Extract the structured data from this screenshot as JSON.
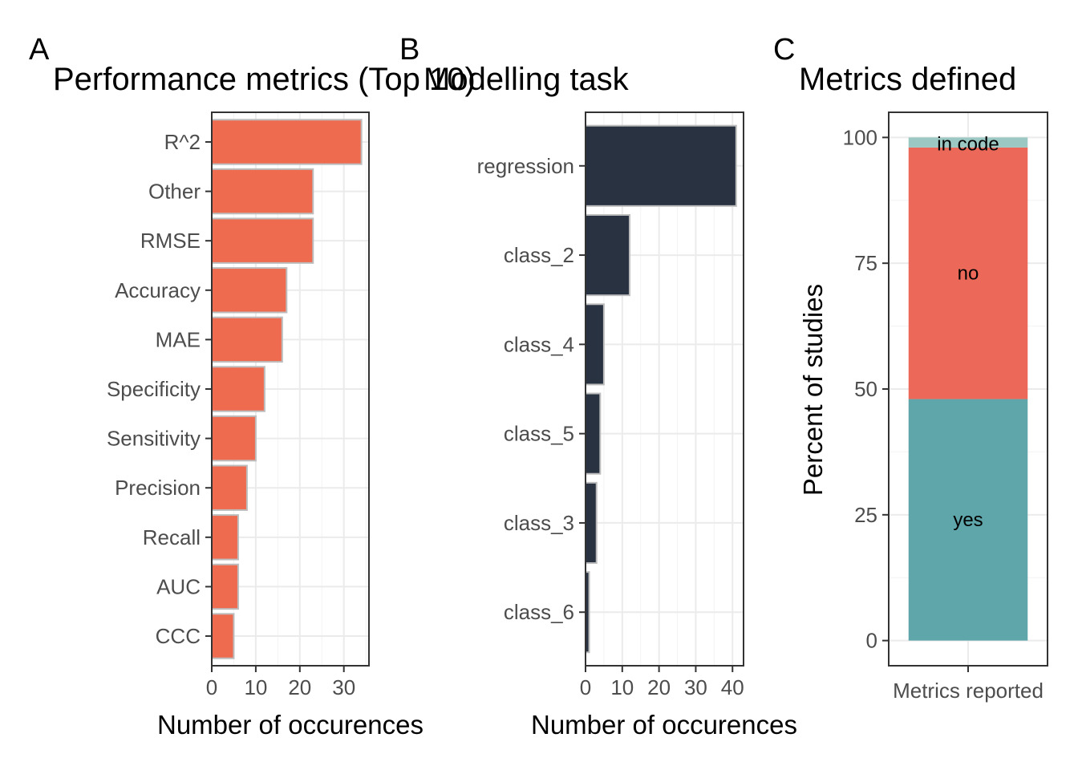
{
  "chart_data": [
    {
      "panel": "A",
      "type": "bar",
      "orientation": "horizontal",
      "title": "Performance metrics (Top 10)",
      "xlabel": "Number of occurences",
      "ylabel": "",
      "categories": [
        "R^2",
        "Other",
        "RMSE",
        "Accuracy",
        "MAE",
        "Specificity",
        "Sensitivity",
        "Precision",
        "Recall",
        "AUC",
        "CCC"
      ],
      "values": [
        34,
        23,
        23,
        17,
        16,
        12,
        10,
        8,
        6,
        6,
        5
      ],
      "xlim": [
        0,
        35.7
      ],
      "xticks": [
        0,
        10,
        20,
        30
      ],
      "color": "#ee6b4f",
      "edge_color": "#bdbdbd"
    },
    {
      "panel": "B",
      "type": "bar",
      "orientation": "horizontal",
      "title": "Modelling task",
      "xlabel": "Number of occurences",
      "ylabel": "",
      "categories": [
        "regression",
        "class_2",
        "class_4",
        "class_5",
        "class_3",
        "class_6"
      ],
      "values": [
        41,
        12,
        5,
        4,
        3,
        1
      ],
      "xlim": [
        0,
        43
      ],
      "xticks": [
        0,
        10,
        20,
        30,
        40
      ],
      "color": "#283241",
      "edge_color": "#bdbdbd"
    },
    {
      "panel": "C",
      "type": "bar",
      "stacked": true,
      "title": "Metrics defined",
      "xlabel": "",
      "ylabel": "Percent of studies",
      "categories": [
        "Metrics reported"
      ],
      "series": [
        {
          "name": "yes",
          "values": [
            48
          ],
          "color": "#5ea6aa"
        },
        {
          "name": "no",
          "values": [
            50
          ],
          "color": "#ec695a"
        },
        {
          "name": "in code",
          "values": [
            2
          ],
          "color": "#9bc8c2"
        }
      ],
      "ylim": [
        -5,
        105
      ],
      "yticks": [
        0,
        25,
        50,
        75,
        100
      ]
    }
  ],
  "tags": [
    "A",
    "B",
    "C"
  ]
}
